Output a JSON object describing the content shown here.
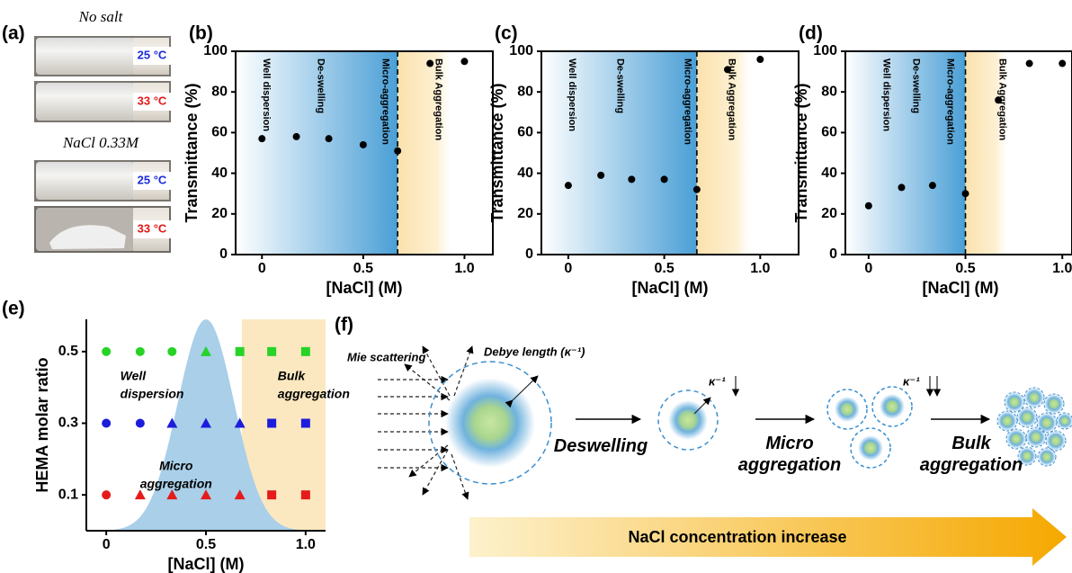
{
  "photo_panel": {
    "label": "(a)",
    "captions": [
      "No salt",
      "NaCl 0.33M"
    ],
    "temperatures": [
      "25 °C",
      "33 °C",
      "25 °C",
      "33 °C"
    ]
  },
  "chart_data": [
    {
      "type": "scatter",
      "label": "(b)",
      "xlabel": "[NaCl] (M)",
      "ylabel": "Transmittance (%)",
      "x": [
        0,
        0.17,
        0.33,
        0.5,
        0.67,
        0.83,
        1.0
      ],
      "values": [
        57,
        58,
        57,
        54,
        51,
        94,
        95
      ],
      "color": "#000000",
      "boundary": 0.67,
      "annotations": [
        "Well dispersion",
        "De-swelling",
        "Micro-aggregation",
        "Bulk Aggregation"
      ],
      "xlim": [
        -0.13,
        1.14
      ],
      "ylim": [
        0,
        100
      ],
      "xticks": [
        0,
        0.5,
        {
          "value": 1,
          "label": "1.0"
        }
      ],
      "yticks": [
        0,
        20,
        40,
        60,
        80,
        100
      ]
    },
    {
      "type": "scatter",
      "label": "(c)",
      "xlabel": "[NaCl] (M)",
      "ylabel": "Transmittance (%)",
      "x": [
        0,
        0.17,
        0.33,
        0.5,
        0.67,
        0.83,
        1.0
      ],
      "values": [
        34,
        39,
        37,
        37,
        32,
        91,
        96
      ],
      "color": "#000000",
      "boundary": 0.67,
      "annotations": [
        "Well dispersion",
        "De-swelling",
        "Micro-aggregation",
        "Bulk Aggregation"
      ],
      "xlim": [
        -0.14,
        1.2
      ],
      "ylim": [
        0,
        100
      ],
      "xticks": [
        0,
        0.5,
        {
          "value": 1,
          "label": "1.0"
        }
      ],
      "yticks": [
        0,
        20,
        40,
        60,
        80,
        100
      ]
    },
    {
      "type": "scatter",
      "label": "(d)",
      "xlabel": "[NaCl] (M)",
      "ylabel": "Transmittance (%)",
      "x": [
        0,
        0.17,
        0.33,
        0.5,
        0.67,
        0.83,
        1.0
      ],
      "values": [
        24,
        33,
        34,
        30,
        76,
        94,
        94
      ],
      "color": "#000000",
      "boundary": 0.5,
      "annotations": [
        "Well dispersion",
        "De-swelling",
        "Micro-aggregation",
        "Bulk Aggregation"
      ],
      "xlim": [
        -0.12,
        1.05
      ],
      "ylim": [
        0,
        100
      ],
      "xticks": [
        0,
        0.5,
        {
          "value": 1,
          "label": "1.0"
        }
      ],
      "yticks": [
        0,
        20,
        40,
        60,
        80,
        100
      ]
    },
    {
      "type": "phase",
      "label": "(e)",
      "xlabel": "[NaCl] (M)",
      "ylabel": "HEMA molar ratio",
      "x": [
        0,
        0.17,
        0.33,
        0.5,
        0.67,
        0.83,
        1.0
      ],
      "series": [
        {
          "color": "#27d327",
          "values": [
            0.5,
            0.5,
            0.5,
            0.5,
            0.5,
            0.5,
            0.5
          ],
          "markers": [
            "circle",
            "circle",
            "circle",
            "triangle",
            "square",
            "square",
            "square"
          ]
        },
        {
          "color": "#1c1cdc",
          "values": [
            0.3,
            0.3,
            0.3,
            0.3,
            0.3,
            0.3,
            0.3
          ],
          "markers": [
            "circle",
            "circle",
            "triangle",
            "triangle",
            "triangle",
            "square",
            "square"
          ]
        },
        {
          "color": "#e51b1b",
          "values": [
            0.1,
            0.1,
            0.1,
            0.1,
            0.1,
            0.1,
            0.1
          ],
          "markers": [
            "circle",
            "triangle",
            "triangle",
            "triangle",
            "triangle",
            "square",
            "square"
          ]
        }
      ],
      "annotations": [
        [
          "Well",
          "dispersion"
        ],
        [
          "Micro",
          "aggregation"
        ],
        [
          "Bulk",
          "aggregation"
        ]
      ],
      "xlim": [
        -0.1,
        1.1
      ],
      "ylim": [
        0,
        0.59
      ],
      "xticks": [
        0,
        0.5,
        {
          "value": 1,
          "label": "1.0"
        }
      ],
      "yticks": [
        0.1,
        0.3,
        0.5
      ]
    }
  ],
  "diagram": {
    "label": "(f)",
    "mie": "Mie scattering",
    "debye": "Debye length (κ⁻¹)",
    "kappa": [
      "κ⁻¹",
      "κ⁻¹"
    ],
    "steps": [
      [
        "Deswelling"
      ],
      [
        "Micro",
        "aggregation"
      ],
      [
        "Bulk",
        "aggregation"
      ]
    ],
    "arrow": "NaCl concentration increase"
  }
}
